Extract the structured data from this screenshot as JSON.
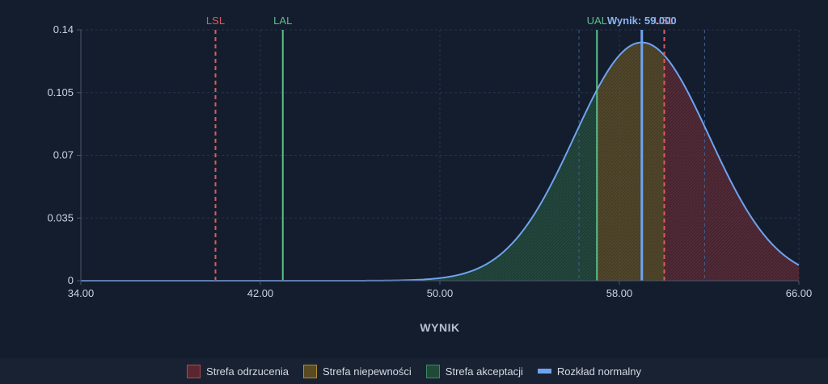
{
  "chart_data": {
    "type": "area",
    "xlabel": "WYNIK",
    "ylabel": "",
    "xlim": [
      34,
      66
    ],
    "ylim": [
      0,
      0.14
    ],
    "x_ticks": [
      "34.00",
      "42.00",
      "50.00",
      "58.00",
      "66.00"
    ],
    "y_ticks": [
      "0",
      "0.035",
      "0.07",
      "0.105",
      "0.14"
    ],
    "grid": true,
    "legend_position": "bottom",
    "distribution": {
      "mean": 59.0,
      "sd": 3.0
    },
    "limits": [
      {
        "label": "LSL",
        "value": 40.0,
        "style": "dashed",
        "color": "#e05a5a"
      },
      {
        "label": "LAL",
        "value": 43.0,
        "style": "solid",
        "color": "#5cc08a"
      },
      {
        "label": "UAL",
        "value": 57.0,
        "style": "solid",
        "color": "#5cc08a"
      },
      {
        "label": "USL",
        "value": 60.0,
        "style": "dashed",
        "color": "#e05a5a"
      }
    ],
    "result": {
      "label": "Wynik: 59.000",
      "value": 59.0,
      "color": "#6fa3ef"
    },
    "legend": [
      {
        "label": "Strefa odrzucenia",
        "kind": "box",
        "fill": "#5a2630",
        "border": "#b4474f"
      },
      {
        "label": "Strefa niepewności",
        "kind": "box",
        "fill": "#5a4a22",
        "border": "#b08a35"
      },
      {
        "label": "Strefa akceptacji",
        "kind": "box",
        "fill": "#1f4a38",
        "border": "#3c8a62"
      },
      {
        "label": "Rozkład normalny",
        "kind": "line",
        "fill": "#6fa3ef",
        "border": "#6fa3ef"
      }
    ]
  }
}
